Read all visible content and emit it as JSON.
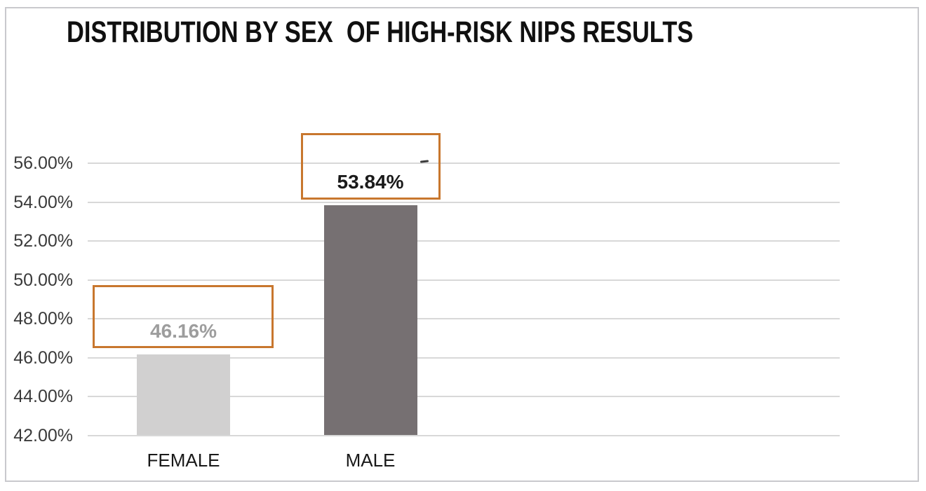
{
  "chart_data": {
    "type": "bar",
    "title": "DISTRIBUTION BY SEX  OF HIGH-RISK NIPS RESULTS",
    "categories": [
      "FEMALE",
      "MALE"
    ],
    "values": [
      46.16,
      53.84
    ],
    "value_labels": [
      "46.16%",
      "53.84%"
    ],
    "y_ticks": [
      "56.00%",
      "54.00%",
      "52.00%",
      "50.00%",
      "48.00%",
      "46.00%",
      "44.00%",
      "42.00%"
    ],
    "ylim": [
      42,
      56
    ],
    "tick_step": 2,
    "grid": true,
    "legend": "none",
    "xlabel": "",
    "ylabel": "",
    "bar_colors": [
      "#d1d0d0",
      "#767072"
    ],
    "label_colors": [
      "#9d9d9d",
      "#1a1a1a"
    ],
    "annotation_color": "#c8772e",
    "gridline_color": "#d8d8d8",
    "frame_color": "#c9c9cd",
    "annotations": [
      {
        "around": "FEMALE data label",
        "shape": "rectangle"
      },
      {
        "around": "MALE data label",
        "shape": "rectangle"
      }
    ]
  }
}
